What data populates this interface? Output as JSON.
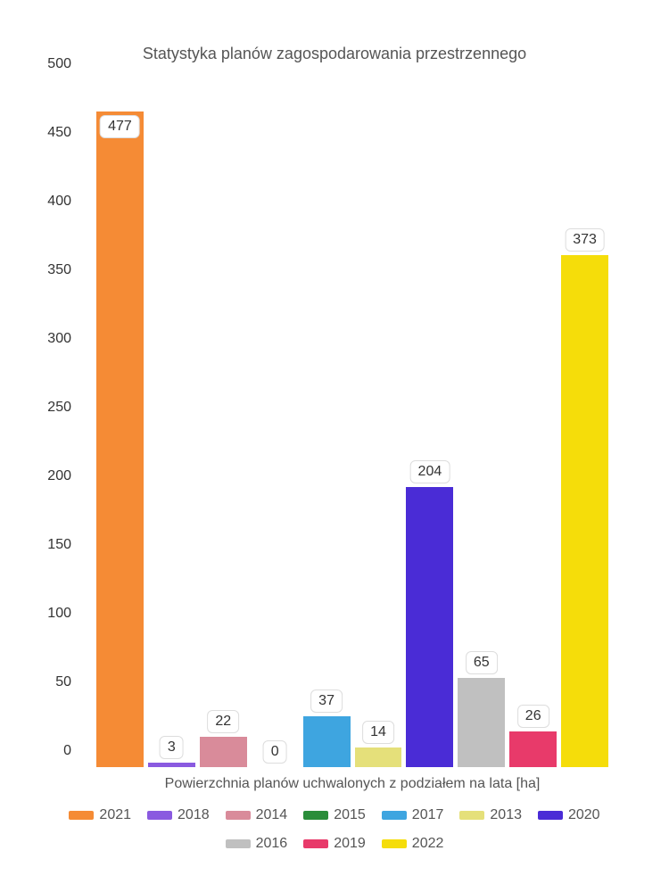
{
  "chart": {
    "type": "bar",
    "title": "Statystyka planów zagospodarowania przestrzennego",
    "xlabel": "Powierzchnia planów uchwalonych z podziałem na lata [ha]",
    "ylim": [
      0,
      500
    ],
    "yticks": [
      0,
      50,
      100,
      150,
      200,
      250,
      300,
      350,
      400,
      450,
      500
    ],
    "background_color": "#ffffff",
    "title_fontsize": 18,
    "label_fontsize": 16,
    "tick_fontsize": 16,
    "bars": [
      {
        "year": "2021",
        "value": 477,
        "color": "#f58b35",
        "label_inside": true
      },
      {
        "year": "2018",
        "value": 3,
        "color": "#8a5ae0",
        "label_inside": false
      },
      {
        "year": "2014",
        "value": 22,
        "color": "#d98b9a",
        "label_inside": false
      },
      {
        "year": "2015",
        "value": 0,
        "color": "#2a8d3a",
        "label_inside": false
      },
      {
        "year": "2017",
        "value": 37,
        "color": "#3ea5e0",
        "label_inside": false
      },
      {
        "year": "2013",
        "value": 14,
        "color": "#e5e07a",
        "label_inside": false
      },
      {
        "year": "2020",
        "value": 204,
        "color": "#4a2cd6",
        "label_inside": false
      },
      {
        "year": "2016",
        "value": 65,
        "color": "#c0c0c0",
        "label_inside": false
      },
      {
        "year": "2019",
        "value": 26,
        "color": "#e83a6a",
        "label_inside": false
      },
      {
        "year": "2022",
        "value": 373,
        "color": "#f5dd0a",
        "label_inside": false
      }
    ],
    "legend": [
      {
        "year": "2021",
        "color": "#f58b35"
      },
      {
        "year": "2018",
        "color": "#8a5ae0"
      },
      {
        "year": "2014",
        "color": "#d98b9a"
      },
      {
        "year": "2015",
        "color": "#2a8d3a"
      },
      {
        "year": "2017",
        "color": "#3ea5e0"
      },
      {
        "year": "2013",
        "color": "#e5e07a"
      },
      {
        "year": "2020",
        "color": "#4a2cd6"
      },
      {
        "year": "2016",
        "color": "#c0c0c0"
      },
      {
        "year": "2019",
        "color": "#e83a6a"
      },
      {
        "year": "2022",
        "color": "#f5dd0a"
      }
    ]
  }
}
